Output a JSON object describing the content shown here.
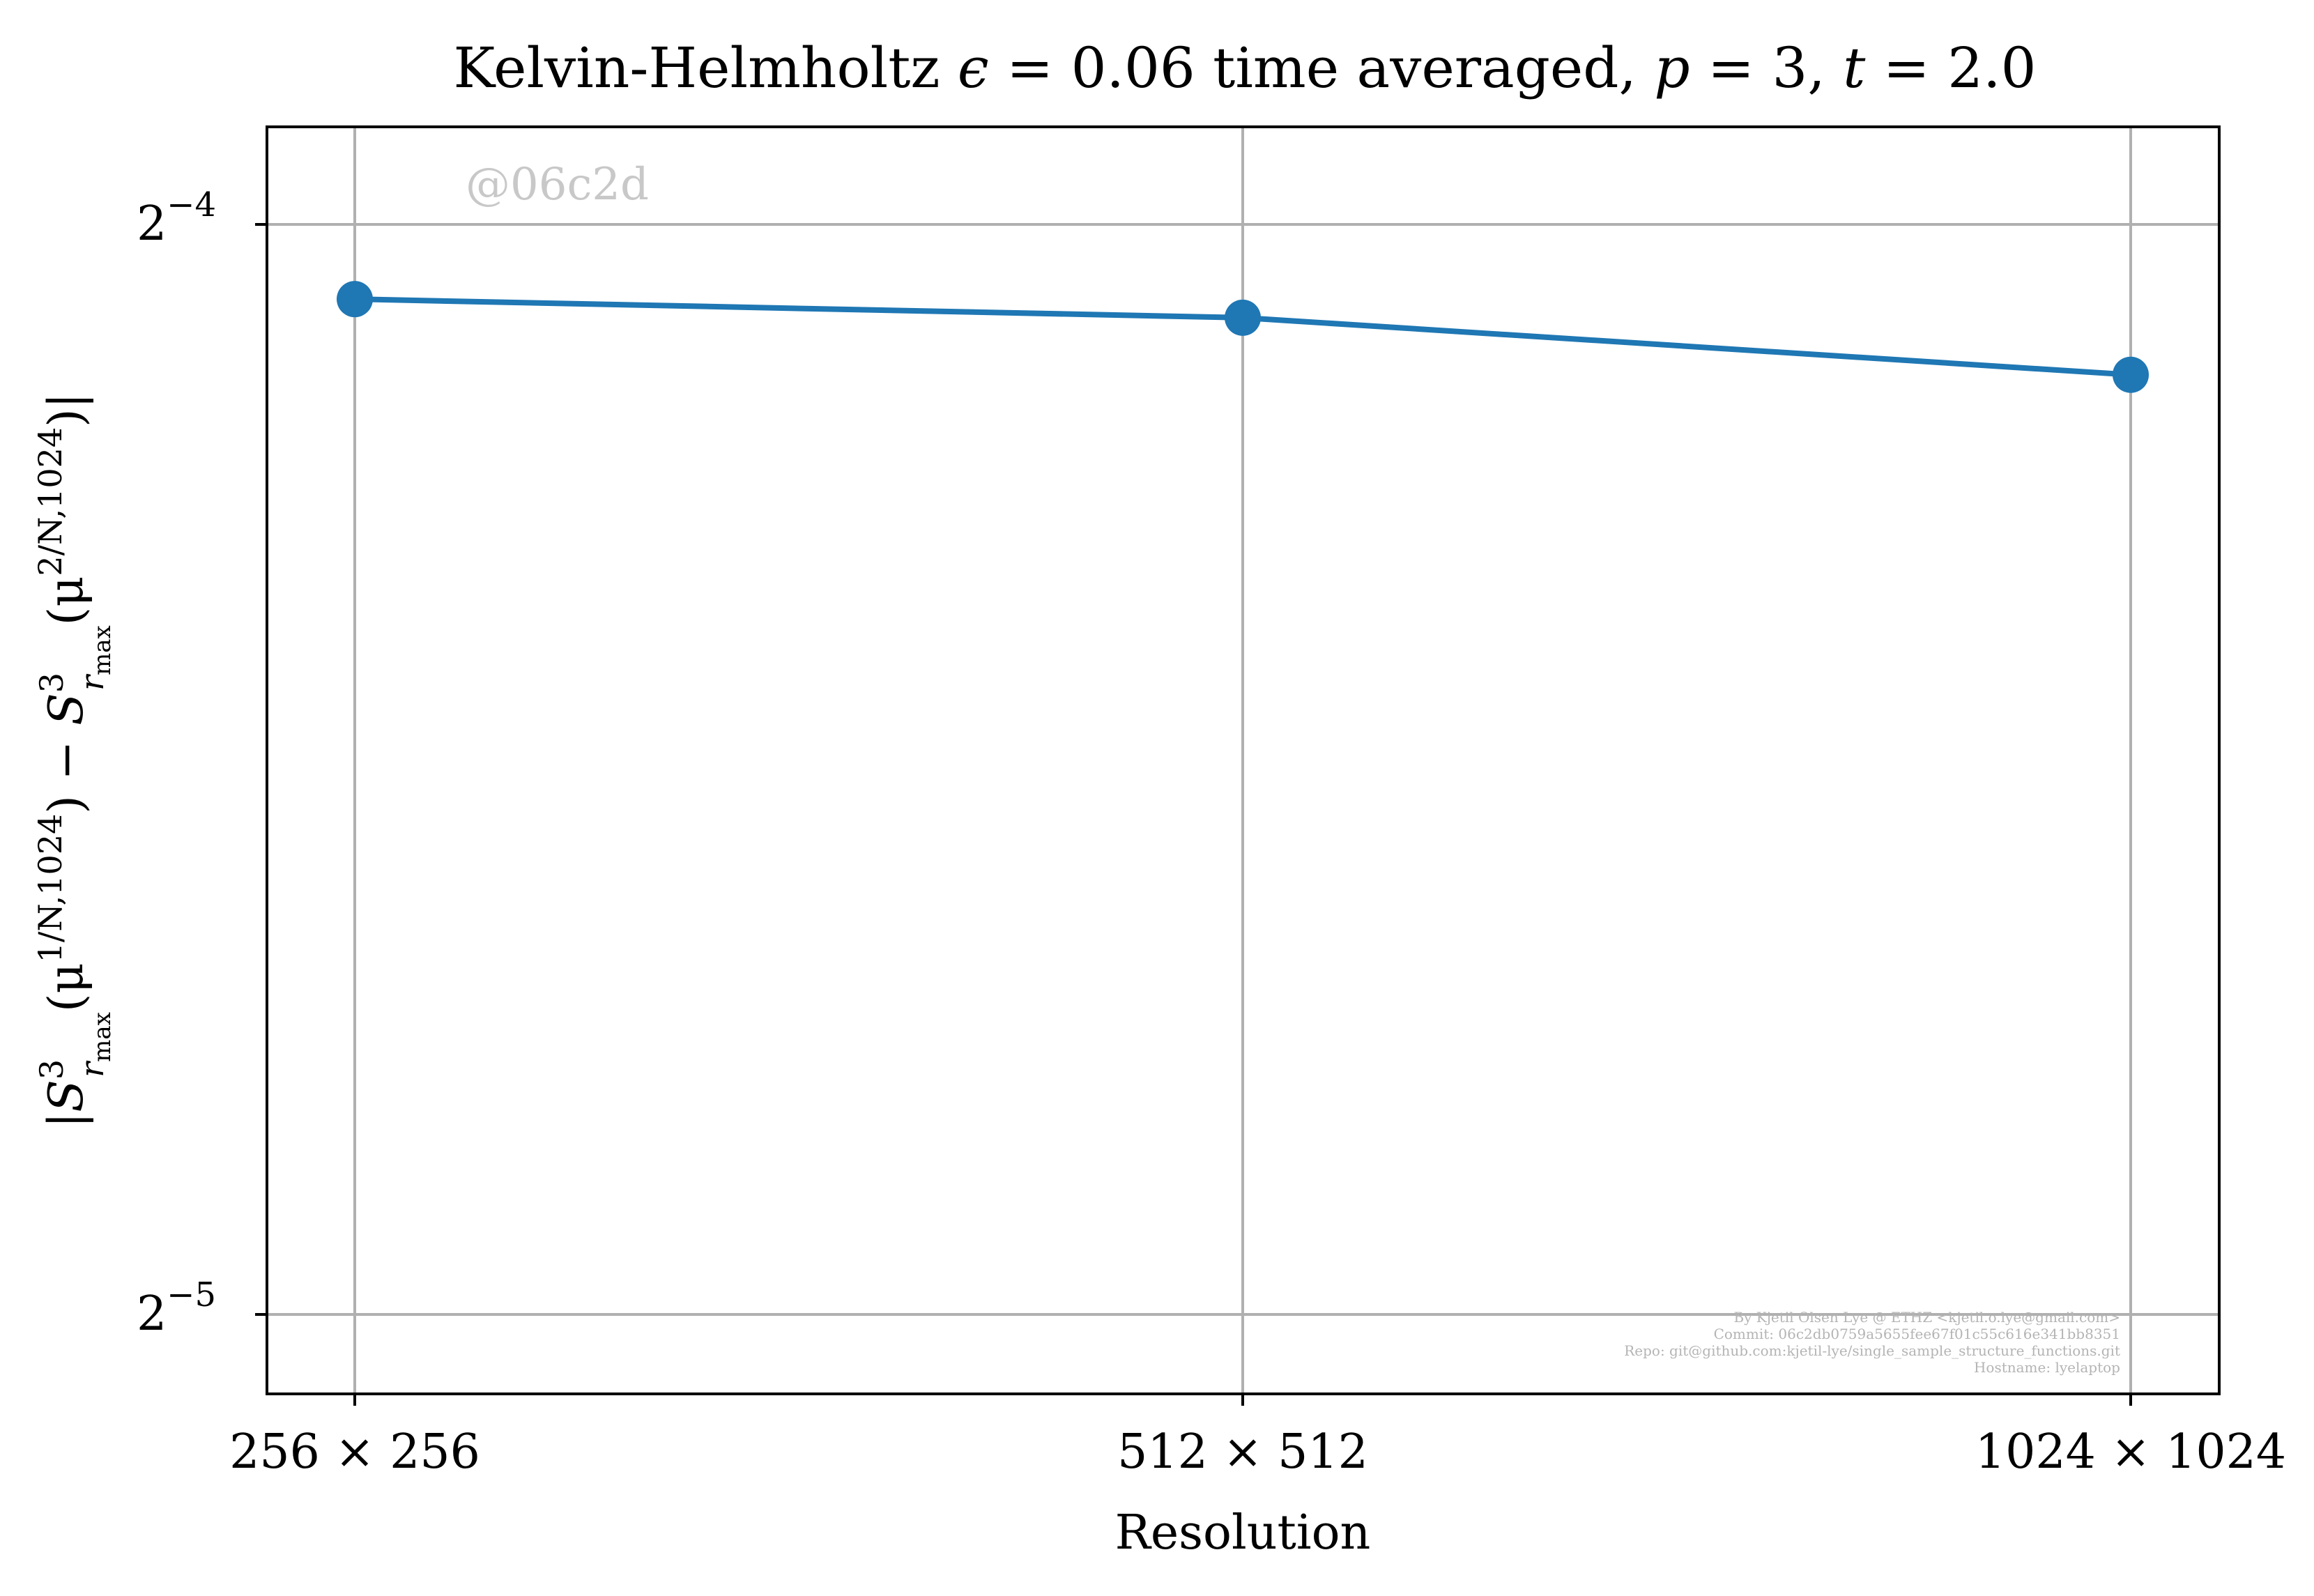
{
  "chart_data": {
    "type": "line",
    "title_parts": {
      "prefix": "Kelvin-Helmholtz ",
      "eps_symbol": "ϵ",
      "eps_eq": " = 0.06 time averaged, ",
      "p_symbol": "p",
      "p_eq": " = 3, ",
      "t_symbol": "t",
      "t_eq": " = 2.0"
    },
    "xlabel": "Resolution",
    "ylabel_parts": {
      "open": "|",
      "S": "S",
      "sup": "3",
      "sub": "r",
      "subsub": "max",
      "arg1": "(μ",
      "arg1_sup": "1/N,1024",
      "minus": ") − ",
      "arg2": "(μ",
      "arg2_sup": "2/N,1024",
      "close": ")|"
    },
    "categories": [
      "256 × 256",
      "512 × 512",
      "1024 × 1024"
    ],
    "series": [
      {
        "values": [
          0.0596,
          0.0589,
          0.0568
        ]
      }
    ],
    "yscale": "log2",
    "ylim": [
      0.02971,
      0.0665
    ],
    "yticks": [
      {
        "value": 0.0625,
        "base": "2",
        "exp": "−4"
      },
      {
        "value": 0.03125,
        "base": "2",
        "exp": "−5"
      }
    ],
    "grid": true,
    "line_color": "#1f77b4",
    "grid_color": "#b0b0b0"
  },
  "watermark": "@06c2d",
  "footer": [
    "By Kjetil Olsen Lye @ ETHZ <kjetil.o.lye@gmail.com>",
    "Commit: 06c2db0759a5655fee67f01c55c616e341bb8351",
    "Repo: git@github.com:kjetil-lye/single_sample_structure_functions.git",
    "Hostname: lyelaptop"
  ]
}
